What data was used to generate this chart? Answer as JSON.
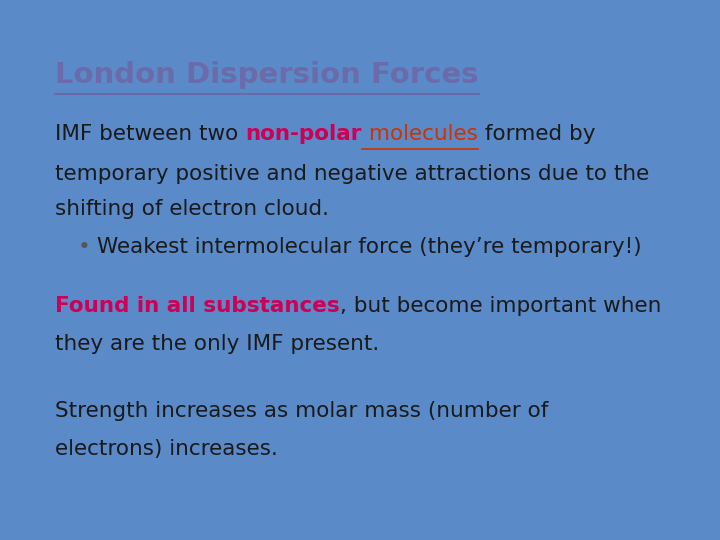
{
  "title": "London Dispersion Forces",
  "title_color": "#6B6BAA",
  "title_fontsize": 21,
  "title_fontweight": "bold",
  "background_color": "#FFFFFF",
  "border_color": "#5B8AC8",
  "seg_line1": [
    {
      "text": "IMF between two ",
      "color": "#1a1a1a",
      "bold": false,
      "underline": false
    },
    {
      "text": "non-polar",
      "color": "#CC0055",
      "bold": true,
      "underline": false
    },
    {
      "text": " molecules",
      "color": "#CC3300",
      "bold": false,
      "underline": true
    },
    {
      "text": " formed by",
      "color": "#1a1a1a",
      "bold": false,
      "underline": false
    }
  ],
  "line2": "temporary positive and negative attractions due to the",
  "line3": "shifting of electron cloud.",
  "bullet_text": "Weakest intermolecular force (they’re temporary!)",
  "seg_found": [
    {
      "text": "Found in all substances",
      "color": "#CC0055",
      "bold": true,
      "underline": false
    },
    {
      "text": ", but become important when",
      "color": "#1a1a1a",
      "bold": false,
      "underline": false
    }
  ],
  "line_they": "they are the only IMF present.",
  "line_strength": "Strength increases as molar mass (number of",
  "line_electrons": "electrons) increases.",
  "text_color": "#1a1a1a",
  "body_fontsize": 15.5,
  "bullet_char": "•",
  "bullet_color": "#555555"
}
